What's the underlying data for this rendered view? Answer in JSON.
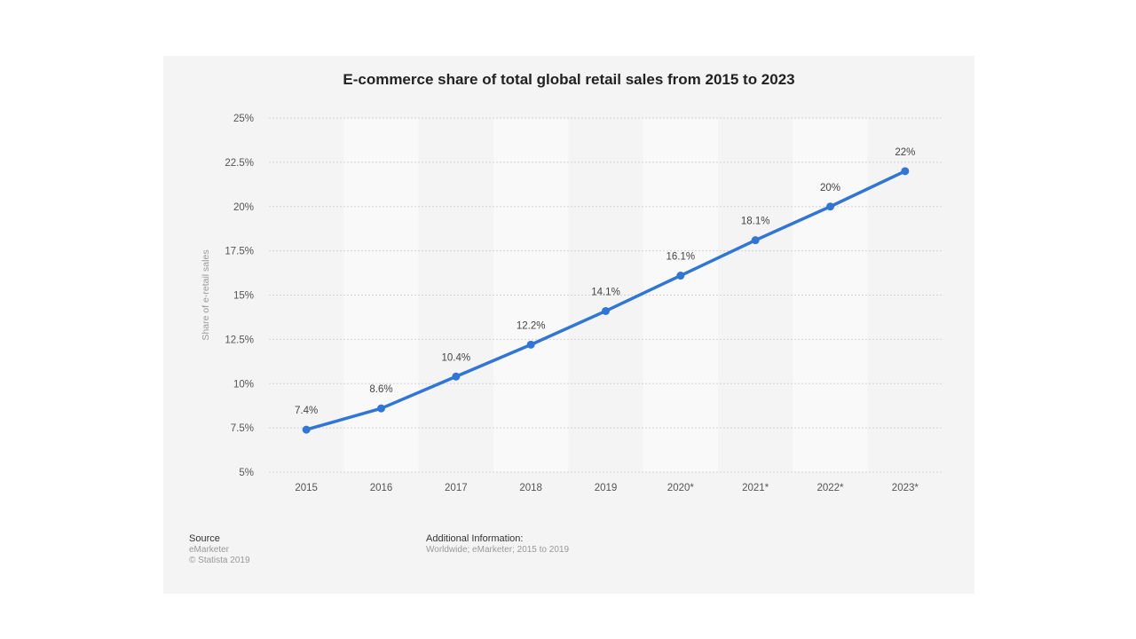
{
  "chart_data": {
    "type": "line",
    "title": "E-commerce share of total global retail sales from 2015 to 2023",
    "xlabel": "",
    "ylabel": "Share of e-retail sales",
    "categories": [
      "2015",
      "2016",
      "2017",
      "2018",
      "2019",
      "2020*",
      "2021*",
      "2022*",
      "2023*"
    ],
    "series": [
      {
        "values": [
          7.4,
          8.6,
          10.4,
          12.2,
          14.1,
          16.1,
          18.1,
          20,
          22
        ],
        "labels": [
          "7.4%",
          "8.6%",
          "10.4%",
          "12.2%",
          "14.1%",
          "16.1%",
          "18.1%",
          "20%",
          "22%"
        ],
        "color": "#2f76d6"
      }
    ],
    "ylim": [
      5,
      25
    ],
    "yticks": [
      5,
      7.5,
      10,
      12.5,
      15,
      17.5,
      20,
      22.5,
      25
    ],
    "ytick_labels": [
      "5%",
      "7.5%",
      "10%",
      "12.5%",
      "15%",
      "17.5%",
      "20%",
      "22.5%",
      "25%"
    ],
    "grid": true,
    "legend": "none"
  },
  "footer": {
    "source_heading": "Source",
    "source_lines": [
      "eMarketer",
      "© Statista 2019"
    ],
    "info_heading": "Additional Information:",
    "info_text": "Worldwide; eMarketer; 2015 to 2019"
  }
}
